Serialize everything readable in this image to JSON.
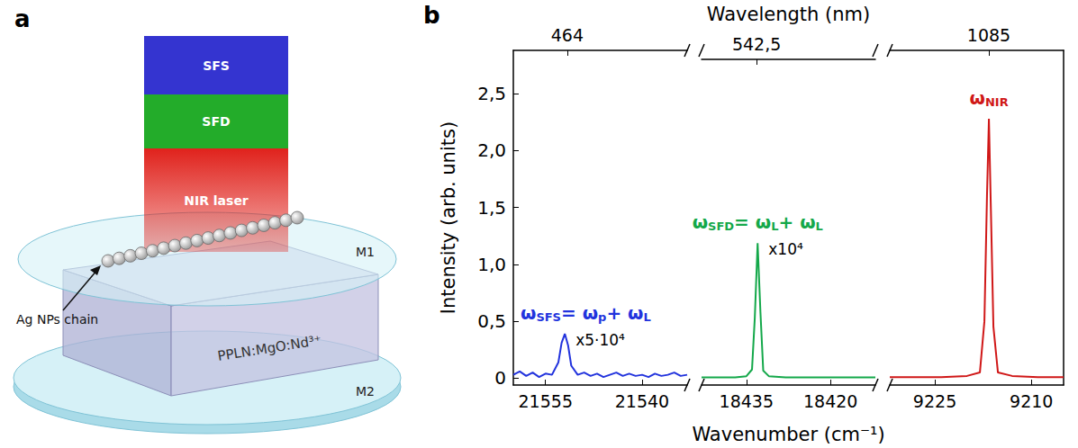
{
  "panel_a": {
    "letter": "a",
    "layers": [
      "SFS",
      "SFD",
      "NIR laser"
    ],
    "mirrors": [
      "M1",
      "M2"
    ],
    "chain_label": "Ag NPs chain",
    "crystal_label": "PPLN:MgO:Nd³⁺"
  },
  "chart_data": {
    "type": "line",
    "letter": "b",
    "x2label": "Wavelength (nm)",
    "xlabel": "Wavenumber (cm⁻¹)",
    "ylabel": "Intensity (arb. units)",
    "ylim": [
      -0.06,
      2.88
    ],
    "yticks": [
      0,
      {
        "value": 0.5,
        "label": "0,5"
      },
      {
        "value": 1,
        "label": "1,0"
      },
      {
        "value": 1.5,
        "label": "1,5"
      },
      {
        "value": 2,
        "label": "2,0"
      },
      {
        "value": 2.5,
        "label": "2,5"
      }
    ],
    "grid": false,
    "segments": [
      {
        "xlim": [
          21560,
          21533
        ],
        "xticks": [
          21555,
          21540
        ],
        "x2lim": [
          463.82,
          464.4
        ],
        "x2ticks": [
          464
        ],
        "color": "#2233dd",
        "x": [
          21560,
          21559,
          21558,
          21557,
          21556,
          21555,
          21554,
          21553,
          21552.5,
          21552,
          21551.5,
          21551,
          21550,
          21549,
          21548,
          21547,
          21546,
          21545,
          21544,
          21543,
          21542,
          21541,
          21540,
          21539,
          21538,
          21537,
          21536,
          21535,
          21534,
          21533
        ],
        "values": [
          0.03,
          0.06,
          0.02,
          0.05,
          0.01,
          0.04,
          0.03,
          0.14,
          0.31,
          0.39,
          0.29,
          0.11,
          0.03,
          0.05,
          0.02,
          0.04,
          0.01,
          0.03,
          0.05,
          0.02,
          0.04,
          0.02,
          0.03,
          0.01,
          0.04,
          0.02,
          0.03,
          0.05,
          0.02,
          0.03
        ],
        "annotation": [
          {
            "text": "ω"
          },
          {
            "sub": "SFS"
          },
          {
            "text": "= ω"
          },
          {
            "sub": "p"
          },
          {
            "text": "+ ω"
          },
          {
            "sub": "L"
          }
        ],
        "scale_label": "x5·10⁴"
      },
      {
        "xlim": [
          18443,
          18412
        ],
        "xticks": [
          18435,
          18420
        ],
        "x2lim": [
          542.211,
          543.124
        ],
        "x2ticks": [
          {
            "value": 542.5,
            "label": "542,5"
          }
        ],
        "color": "#14a84a",
        "x": [
          18443,
          18440,
          18437,
          18435,
          18434,
          18433.5,
          18433,
          18432.5,
          18432,
          18431,
          18428,
          18424,
          18420,
          18416,
          18412
        ],
        "values": [
          0.01,
          0.01,
          0.01,
          0.02,
          0.08,
          0.55,
          1.22,
          0.6,
          0.07,
          0.02,
          0.01,
          0.01,
          0.01,
          0.01,
          0.01
        ],
        "annotation": [
          {
            "text": "ω"
          },
          {
            "sub": "SFD"
          },
          {
            "text": "= ω"
          },
          {
            "sub": "L"
          },
          {
            "text": "+ ω"
          },
          {
            "sub": "L"
          }
        ],
        "scale_label": "x10⁴"
      },
      {
        "xlim": [
          9232,
          9205
        ],
        "xticks": [
          9225,
          9210
        ],
        "x2lim": [
          1083.189,
          1086.366
        ],
        "x2ticks": [
          1085
        ],
        "color": "#d01818",
        "x": [
          9232,
          9228,
          9224,
          9220,
          9218,
          9217.3,
          9216.9,
          9216.6,
          9216.3,
          9215.9,
          9215.2,
          9213,
          9209,
          9205
        ],
        "values": [
          0.01,
          0.01,
          0.01,
          0.02,
          0.05,
          0.5,
          1.6,
          2.28,
          1.5,
          0.45,
          0.05,
          0.02,
          0.01,
          0.01
        ],
        "annotation": [
          {
            "text": "ω"
          },
          {
            "sub": "NIR"
          }
        ]
      }
    ]
  }
}
